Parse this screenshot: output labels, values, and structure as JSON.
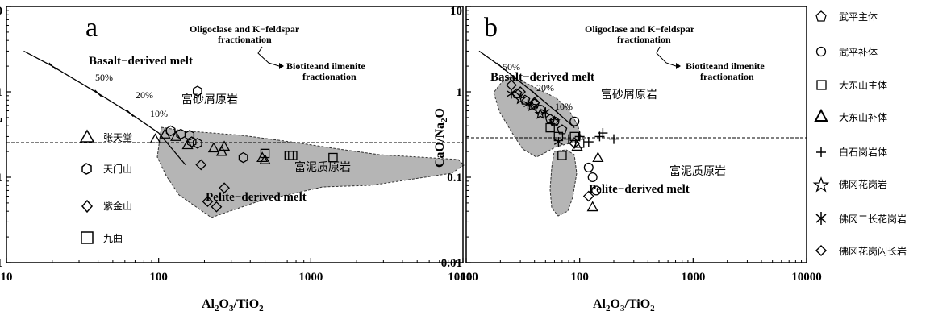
{
  "chart_data": [
    {
      "panel": "a",
      "type": "scatter",
      "x_scale": "log",
      "y_scale": "log",
      "xlim": [
        10,
        10000
      ],
      "ylim": [
        0.01,
        10
      ],
      "xlabel": "Al2O3/TiO2",
      "ylabel": "CaO/Na2O",
      "x_ticks": [
        "10",
        "100",
        "1000",
        "10000"
      ],
      "y_ticks": [
        "0.01",
        "0.1",
        "1",
        "10"
      ],
      "reference_line_y": 0.3,
      "mixing_curve": [
        [
          13,
          3.0
        ],
        [
          20,
          2.0
        ],
        [
          40,
          0.96
        ],
        [
          65,
          0.56
        ],
        [
          100,
          0.33
        ],
        [
          150,
          0.14
        ]
      ],
      "mixing_labels": [
        "50%",
        "20%",
        "10%"
      ],
      "annotations": {
        "basalt": "Basalt−derived melt",
        "pelite": "Pelite−derived melt",
        "oligoclase": "Oligoclase and K−feldspar fractionation",
        "biotite": "Biotiteand ilmenite fractionation",
        "sand": "富砂屑原岩",
        "mud": "富泥质原岩"
      },
      "legend": [
        "张天堂",
        "天门山",
        "紫金山",
        "九曲"
      ],
      "series": [
        {
          "name": "张天堂",
          "marker": "triangle",
          "points": [
            [
              95,
              0.28
            ],
            [
              110,
              0.32
            ],
            [
              130,
              0.3
            ],
            [
              155,
              0.24
            ],
            [
              230,
              0.22
            ],
            [
              260,
              0.2
            ],
            [
              270,
              0.23
            ],
            [
              480,
              0.17
            ],
            [
              500,
              0.16
            ]
          ]
        },
        {
          "name": "天门山",
          "marker": "hexagon",
          "points": [
            [
              120,
              0.35
            ],
            [
              140,
              0.32
            ],
            [
              160,
              0.31
            ],
            [
              165,
              0.26
            ],
            [
              180,
              0.25
            ],
            [
              180,
              1.02
            ],
            [
              360,
              0.17
            ]
          ]
        },
        {
          "name": "紫金山",
          "marker": "diamond",
          "points": [
            [
              190,
              0.14
            ],
            [
              210,
              0.052
            ],
            [
              240,
              0.045
            ],
            [
              270,
              0.075
            ]
          ]
        },
        {
          "name": "九曲",
          "marker": "square",
          "points": [
            [
              500,
              0.19
            ],
            [
              720,
              0.18
            ],
            [
              760,
              0.18
            ],
            [
              1400,
              0.17
            ]
          ]
        }
      ]
    },
    {
      "panel": "b",
      "type": "scatter",
      "x_scale": "log",
      "y_scale": "log",
      "xlim": [
        10,
        10000
      ],
      "ylim": [
        0.01,
        10
      ],
      "xlabel": "Al2O3/TiO2",
      "ylabel": "CaO/Na2O",
      "x_ticks": [
        "10",
        "100",
        "1000",
        "10000"
      ],
      "y_ticks": [
        "0.01",
        "0.1",
        "1",
        "10"
      ],
      "reference_line_y": 0.3,
      "mixing_curve": [
        [
          13,
          3.0
        ],
        [
          20,
          2.0
        ],
        [
          40,
          0.96
        ],
        [
          65,
          0.56
        ],
        [
          90,
          0.38
        ]
      ],
      "mixing_labels": [
        "50%",
        "20%",
        "10%"
      ],
      "annotations": {
        "basalt": "Basalt−derived melt",
        "pelite": "Pelite−derived melt",
        "oligoclase": "Oligoclase and K−feldspar fractionation",
        "biotite": "Biotiteand ilmenite fractionation",
        "sand": "富砂屑原岩",
        "mud": "富泥质原岩"
      },
      "legend": [
        "武平主体",
        "武平补体",
        "大东山主体",
        "大东山补体",
        "白石岗岩体",
        "佛冈花岗岩",
        "佛冈二长花岗岩",
        "佛冈花岗闪长岩"
      ],
      "series": [
        {
          "name": "武平主体",
          "marker": "pentagon",
          "points": [
            [
              28,
              0.95
            ],
            [
              33,
              0.8
            ],
            [
              40,
              0.72
            ],
            [
              55,
              0.48
            ],
            [
              70,
              0.36
            ]
          ]
        },
        {
          "name": "武平补体",
          "marker": "circle",
          "points": [
            [
              45,
              0.62
            ],
            [
              60,
              0.45
            ],
            [
              90,
              0.45
            ],
            [
              120,
              0.13
            ],
            [
              130,
              0.1
            ],
            [
              140,
              0.07
            ]
          ]
        },
        {
          "name": "大东山主体",
          "marker": "square",
          "points": [
            [
              55,
              0.38
            ],
            [
              65,
              0.3
            ],
            [
              70,
              0.18
            ],
            [
              90,
              0.3
            ],
            [
              100,
              0.25
            ]
          ]
        },
        {
          "name": "大东山补体",
          "marker": "triangle",
          "points": [
            [
              95,
              0.23
            ],
            [
              130,
              0.045
            ],
            [
              145,
              0.17
            ]
          ]
        },
        {
          "name": "白石岗岩体",
          "marker": "plus",
          "points": [
            [
              80,
              0.28
            ],
            [
              100,
              0.3
            ],
            [
              120,
              0.26
            ],
            [
              150,
              0.3
            ],
            [
              160,
              0.33
            ],
            [
              200,
              0.28
            ]
          ]
        },
        {
          "name": "佛冈花岗岩",
          "marker": "star",
          "points": [
            [
              30,
              0.82
            ],
            [
              38,
              0.68
            ],
            [
              45,
              0.55
            ],
            [
              60,
              0.45
            ]
          ]
        },
        {
          "name": "佛冈二长花岗岩",
          "marker": "asterisk",
          "points": [
            [
              25,
              0.95
            ],
            [
              35,
              0.72
            ],
            [
              50,
              0.58
            ],
            [
              65,
              0.26
            ]
          ]
        },
        {
          "name": "佛冈花岗闪长岩",
          "marker": "diamond",
          "points": [
            [
              25,
              1.2
            ],
            [
              30,
              1.0
            ],
            [
              40,
              0.75
            ],
            [
              90,
              0.25
            ],
            [
              120,
              0.06
            ]
          ]
        }
      ]
    }
  ]
}
